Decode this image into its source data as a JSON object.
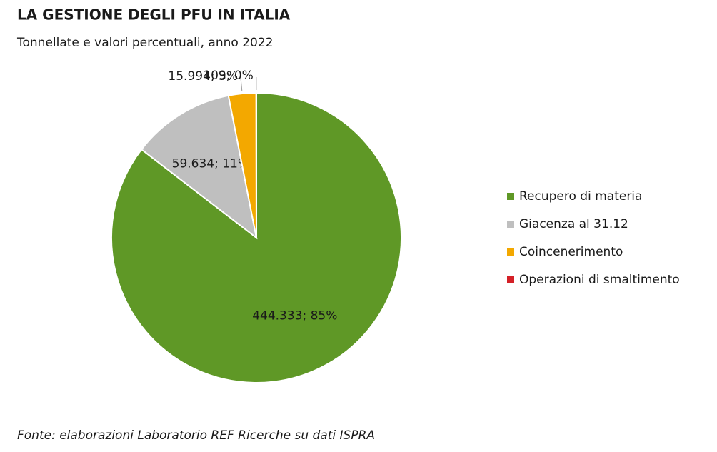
{
  "chart_data": {
    "type": "pie",
    "title": "LA GESTIONE DEGLI PFU IN ITALIA",
    "subtitle": "Tonnellate e valori percentuali, anno 2022",
    "source": "Fonte: elaborazioni Laboratorio REF Ricerche su dati ISPRA",
    "categories": [
      "Recupero di materia",
      "Giacenza al 31.12",
      "Coincenerimento",
      "Operazioni di smaltimento"
    ],
    "values": [
      444333,
      59634,
      15994,
      109
    ],
    "value_labels": [
      "444.333; 85%",
      "59.634; 11%",
      "15.994; 3%",
      "109; 0%"
    ],
    "colors": [
      "#5f9826",
      "#bfbfbf",
      "#f3a800",
      "#d42027"
    ],
    "legend": "right"
  }
}
